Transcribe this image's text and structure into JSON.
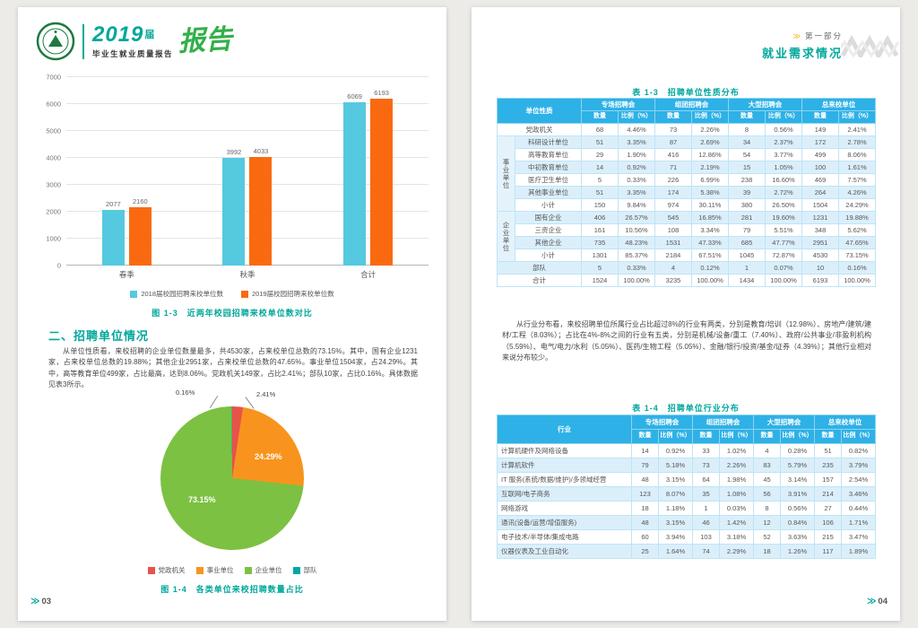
{
  "brand": {
    "year": "2019",
    "year_suffix": "届",
    "subtitle": "毕业生就业质量报告",
    "script_title": "报告"
  },
  "right_header": {
    "part_label": "第一部分",
    "part_title": "就业需求情况"
  },
  "left_page": {
    "section_heading": "二、招聘单位情况",
    "paragraph": "从单位性质看，来校招聘的企业单位数量最多，共4530家，占来校单位总数的73.15%。其中，国有企业1231家，占来校单位总数的19.88%；其他企业2951家，占来校单位总数的47.65%。事业单位1504家，占24.29%。其中，高等教育单位499家，占比最高，达到8.06%。党政机关149家，占比2.41%；部队10家，占比0.16%。具体数据见表3所示。",
    "page_number": "03"
  },
  "right_page": {
    "paragraph": "从行业分布看，来校招聘单位所属行业占比超过8%的行业有两类，分别是教育/培训（12.98%）、房地产/建筑/建材/工程（8.03%）；占比在4%-8%之间的行业有五类，分别是机械/设备/重工（7.40%）、政府/公共事业/非盈利机构（5.59%）、电气/电力/水利（5.05%）、医药/生物工程（5.05%）、金融/银行/投资/基金/证券（4.39%）；其他行业相对来说分布较少。",
    "page_number": "04"
  },
  "chart_data": [
    {
      "type": "bar",
      "title": "图 1-3　近两年校园招聘来校单位数对比",
      "categories": [
        "春季",
        "秋季",
        "合计"
      ],
      "series": [
        {
          "name": "2018届校园招聘来校单位数",
          "color": "#55c9e0",
          "values": [
            2077,
            3992,
            6069
          ]
        },
        {
          "name": "2019届校园招聘来校单位数",
          "color": "#f96a10",
          "values": [
            2160,
            4033,
            6193
          ]
        }
      ],
      "ylim": [
        0,
        7000
      ],
      "ytick_step": 1000,
      "grid": true,
      "legend_position": "bottom"
    },
    {
      "type": "pie",
      "title": "图 1-4　各类单位来校招聘数量占比",
      "slices": [
        {
          "label": "党政机关",
          "value": 2.41,
          "color": "#e8524a"
        },
        {
          "label": "事业单位",
          "value": 24.29,
          "color": "#f8941d"
        },
        {
          "label": "企业单位",
          "value": 73.15,
          "color": "#7cc142"
        },
        {
          "label": "部队",
          "value": 0.16,
          "color": "#00a7a8"
        }
      ],
      "legend_position": "bottom"
    }
  ],
  "table1": {
    "caption": "表 1-3　招聘单位性质分布",
    "first_col_header": "单位性质",
    "col_headers": [
      "专场招聘会",
      "组团招聘会",
      "大型招聘会",
      "总来校单位"
    ],
    "sub_headers": [
      "数量",
      "比例（%）"
    ],
    "rows": [
      {
        "label": "党政机关",
        "span": 2,
        "cells": [
          "68",
          "4.46%",
          "73",
          "2.26%",
          "8",
          "0.56%",
          "149",
          "2.41%"
        ]
      },
      {
        "group": "事业单位",
        "group_span": 6,
        "label": "科研设计单位",
        "cells": [
          "51",
          "3.35%",
          "87",
          "2.69%",
          "34",
          "2.37%",
          "172",
          "2.78%"
        ]
      },
      {
        "label": "高等教育单位",
        "cells": [
          "29",
          "1.90%",
          "416",
          "12.86%",
          "54",
          "3.77%",
          "499",
          "8.06%"
        ]
      },
      {
        "label": "中初教育单位",
        "cells": [
          "14",
          "0.92%",
          "71",
          "2.19%",
          "15",
          "1.05%",
          "100",
          "1.61%"
        ]
      },
      {
        "label": "医疗卫生单位",
        "cells": [
          "5",
          "0.33%",
          "226",
          "6.99%",
          "238",
          "16.60%",
          "469",
          "7.57%"
        ]
      },
      {
        "label": "其他事业单位",
        "cells": [
          "51",
          "3.35%",
          "174",
          "5.38%",
          "39",
          "2.72%",
          "264",
          "4.26%"
        ]
      },
      {
        "label": "小计",
        "cells": [
          "150",
          "9.84%",
          "974",
          "30.11%",
          "380",
          "26.50%",
          "1504",
          "24.29%"
        ]
      },
      {
        "group": "企业单位",
        "group_span": 4,
        "label": "国有企业",
        "cells": [
          "406",
          "26.57%",
          "545",
          "16.85%",
          "281",
          "19.60%",
          "1231",
          "19.88%"
        ]
      },
      {
        "label": "三资企业",
        "cells": [
          "161",
          "10.56%",
          "108",
          "3.34%",
          "79",
          "5.51%",
          "348",
          "5.62%"
        ]
      },
      {
        "label": "其他企业",
        "cells": [
          "735",
          "48.23%",
          "1531",
          "47.33%",
          "685",
          "47.77%",
          "2951",
          "47.65%"
        ]
      },
      {
        "label": "小计",
        "cells": [
          "1301",
          "85.37%",
          "2184",
          "67.51%",
          "1045",
          "72.87%",
          "4530",
          "73.15%"
        ]
      },
      {
        "label": "部队",
        "span": 2,
        "cells": [
          "5",
          "0.33%",
          "4",
          "0.12%",
          "1",
          "0.07%",
          "10",
          "0.16%"
        ]
      },
      {
        "label": "合计",
        "span": 2,
        "cells": [
          "1524",
          "100.00%",
          "3235",
          "100.00%",
          "1434",
          "100.00%",
          "6193",
          "100.00%"
        ]
      }
    ]
  },
  "table2": {
    "caption": "表 1-4　招聘单位行业分布",
    "first_col_header": "行业",
    "col_headers": [
      "专场招聘会",
      "组团招聘会",
      "大型招聘会",
      "总来校单位"
    ],
    "sub_headers": [
      "数量",
      "比例（%）"
    ],
    "rows": [
      {
        "label": "计算机硬件及网络设备",
        "cells": [
          "14",
          "0.92%",
          "33",
          "1.02%",
          "4",
          "0.28%",
          "51",
          "0.82%"
        ]
      },
      {
        "label": "计算机软件",
        "cells": [
          "79",
          "5.18%",
          "73",
          "2.26%",
          "83",
          "5.79%",
          "235",
          "3.79%"
        ]
      },
      {
        "label": "IT 服务(系统/数据/维护)/多领域经营",
        "cells": [
          "48",
          "3.15%",
          "64",
          "1.98%",
          "45",
          "3.14%",
          "157",
          "2.54%"
        ]
      },
      {
        "label": "互联网/电子商务",
        "cells": [
          "123",
          "8.07%",
          "35",
          "1.08%",
          "56",
          "3.91%",
          "214",
          "3.46%"
        ]
      },
      {
        "label": "网络游戏",
        "cells": [
          "18",
          "1.18%",
          "1",
          "0.03%",
          "8",
          "0.56%",
          "27",
          "0.44%"
        ]
      },
      {
        "label": "通讯(设备/运营/增值服务)",
        "cells": [
          "48",
          "3.15%",
          "46",
          "1.42%",
          "12",
          "0.84%",
          "106",
          "1.71%"
        ]
      },
      {
        "label": "电子技术/半导体/集成电路",
        "cells": [
          "60",
          "3.94%",
          "103",
          "3.18%",
          "52",
          "3.63%",
          "215",
          "3.47%"
        ]
      },
      {
        "label": "仪器仪表及工业自动化",
        "cells": [
          "25",
          "1.64%",
          "74",
          "2.29%",
          "18",
          "1.26%",
          "117",
          "1.89%"
        ]
      }
    ]
  },
  "colors": {
    "accent_teal": "#00a79b",
    "table_header_blue": "#2eb1e6",
    "bar_2018": "#55c9e0",
    "bar_2019": "#f96a10"
  }
}
